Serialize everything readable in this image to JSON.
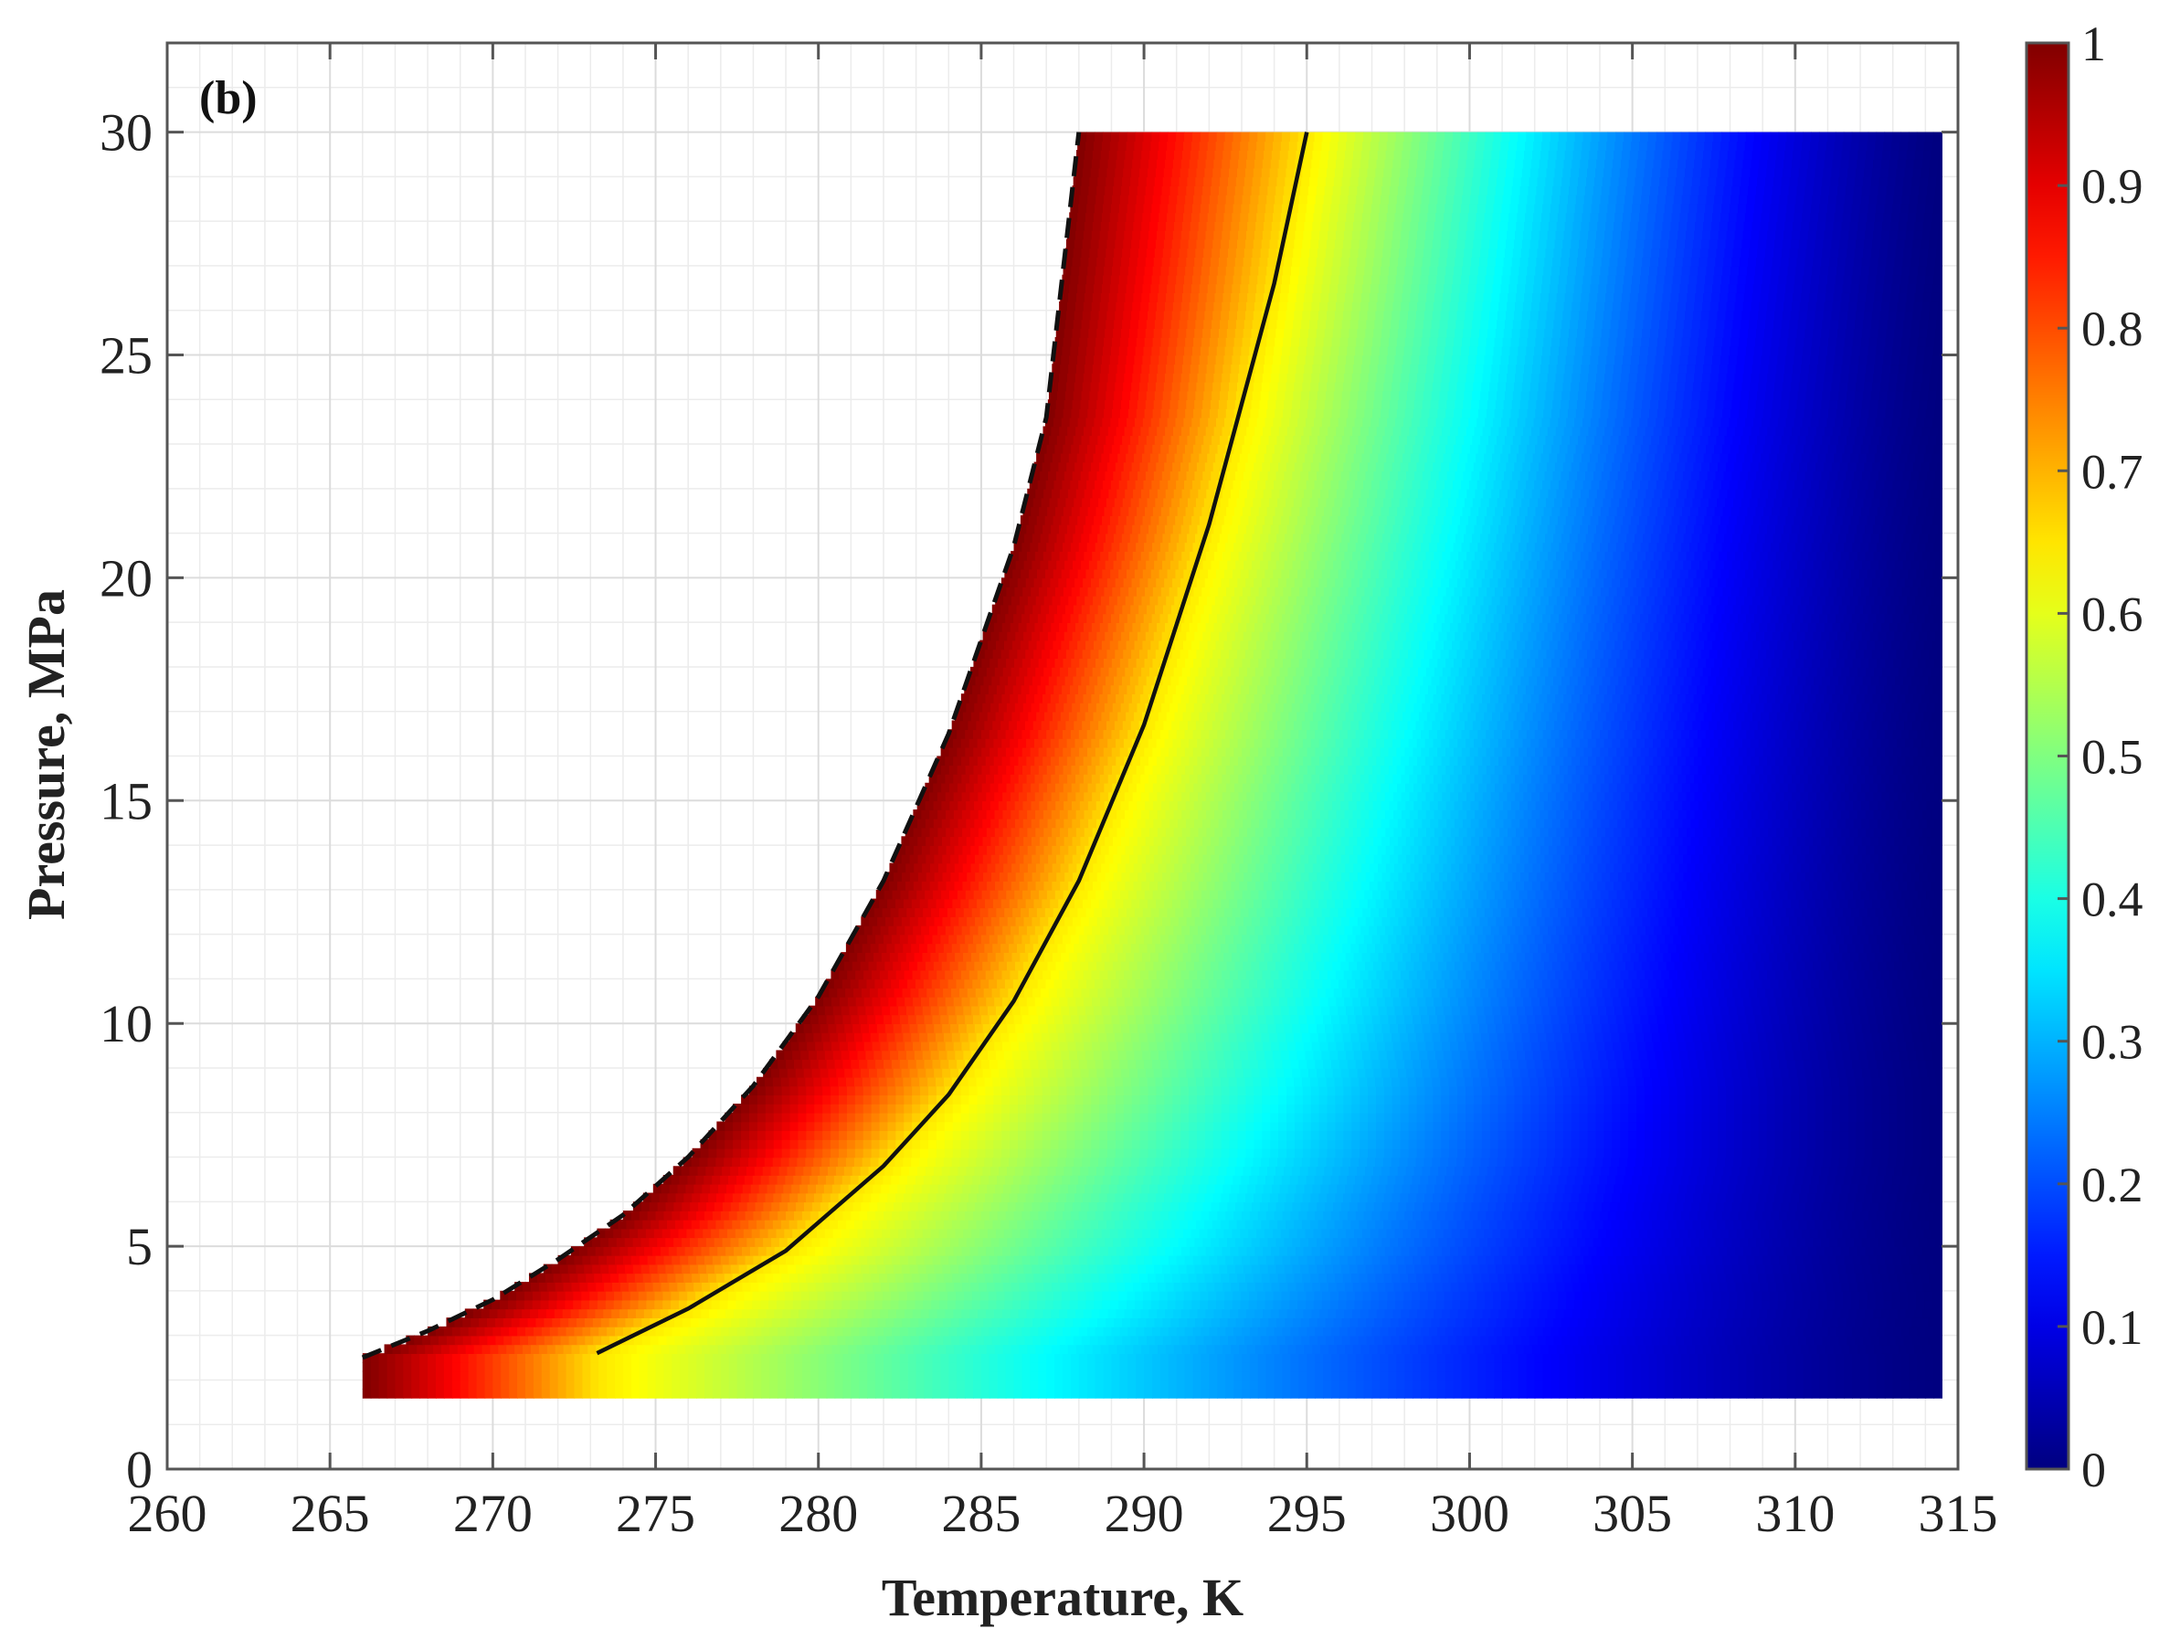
{
  "chart_data": {
    "type": "heatmap",
    "panel_label": "(b)",
    "xlabel": "Temperature, K",
    "ylabel": "Pressure, MPa",
    "xlim": [
      260,
      315
    ],
    "ylim": [
      0,
      32
    ],
    "xticks": [
      "260",
      "265",
      "270",
      "275",
      "280",
      "285",
      "290",
      "295",
      "300",
      "305",
      "310",
      "315"
    ],
    "yticks": [
      "0",
      "5",
      "10",
      "15",
      "20",
      "25",
      "30"
    ],
    "grid": true,
    "colormap": "jet",
    "colorbar": {
      "range": [
        0,
        1
      ],
      "ticks": [
        "0",
        "0.1",
        "0.2",
        "0.3",
        "0.4",
        "0.5",
        "0.6",
        "0.7",
        "0.8",
        "0.9",
        "1"
      ]
    },
    "field_extent": {
      "T_max": 314.5,
      "P_min": 1.6,
      "P_max": 30
    },
    "dashed_boundary": {
      "T": [
        266.0,
        268.0,
        270.0,
        272.0,
        274.0,
        276.0,
        278.0,
        280.0,
        282.0,
        284.0,
        286.0,
        287.0,
        288.0
      ],
      "P": [
        2.5,
        3.1,
        3.8,
        4.7,
        5.7,
        7.0,
        8.6,
        10.6,
        13.2,
        16.5,
        20.7,
        23.6,
        30.0
      ]
    },
    "solid_curve": {
      "T": [
        273.2,
        276.0,
        279.0,
        282.0,
        284.0,
        286.0,
        288.0,
        290.0,
        292.0,
        294.0,
        295.0
      ],
      "P": [
        2.6,
        3.6,
        4.9,
        6.8,
        8.4,
        10.5,
        13.2,
        16.7,
        21.2,
        26.6,
        30.0
      ]
    },
    "colors": {
      "axis": "#555555",
      "grid_minor": "#ececec",
      "curve": "#111111"
    }
  }
}
